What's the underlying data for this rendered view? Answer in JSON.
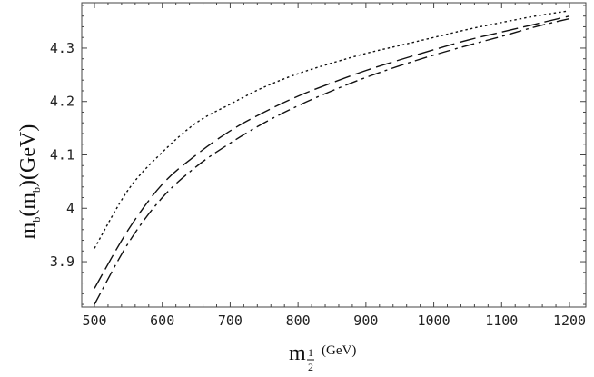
{
  "chart_data": {
    "type": "line",
    "xlabel": {
      "main": "m",
      "subscript_numerator": "1",
      "subscript_denominator": "2",
      "unit": "(GeV)"
    },
    "ylabel": {
      "m1": "m",
      "sub1": "b",
      "paren_open": "(m",
      "sub2": "b",
      "rest": ")(GeV)"
    },
    "xlim": [
      500,
      1200
    ],
    "ylim": [
      3.815,
      4.385
    ],
    "x_ticks": [
      500,
      600,
      700,
      800,
      900,
      1000,
      1100,
      1200
    ],
    "x_tick_labels": [
      "500",
      "600",
      "700",
      "800",
      "900",
      "1000",
      "1100",
      "1200"
    ],
    "y_ticks": [
      3.9,
      4.0,
      4.1,
      4.2,
      4.3
    ],
    "y_tick_labels": [
      "3.9",
      "4",
      "4.1",
      "4.2",
      "4.3"
    ],
    "grid": false,
    "series": [
      {
        "style": "dotted",
        "x": [
          500,
          550,
          600,
          650,
          700,
          750,
          800,
          850,
          900,
          950,
          1000,
          1050,
          1100,
          1150,
          1200
        ],
        "y": [
          3.925,
          4.035,
          4.105,
          4.16,
          4.195,
          4.227,
          4.252,
          4.272,
          4.29,
          4.305,
          4.32,
          4.335,
          4.348,
          4.36,
          4.37
        ]
      },
      {
        "style": "long-dash",
        "x": [
          500,
          550,
          600,
          650,
          700,
          750,
          800,
          850,
          900,
          950,
          1000,
          1050,
          1100,
          1150,
          1200
        ],
        "y": [
          3.85,
          3.96,
          4.045,
          4.1,
          4.145,
          4.18,
          4.21,
          4.235,
          4.258,
          4.278,
          4.297,
          4.315,
          4.33,
          4.345,
          4.36
        ]
      },
      {
        "style": "dash-dot",
        "x": [
          500,
          550,
          600,
          650,
          700,
          750,
          800,
          850,
          900,
          950,
          1000,
          1050,
          1100,
          1150,
          1200
        ],
        "y": [
          3.82,
          3.935,
          4.02,
          4.078,
          4.122,
          4.16,
          4.192,
          4.22,
          4.245,
          4.267,
          4.287,
          4.305,
          4.322,
          4.34,
          4.355
        ]
      }
    ]
  }
}
